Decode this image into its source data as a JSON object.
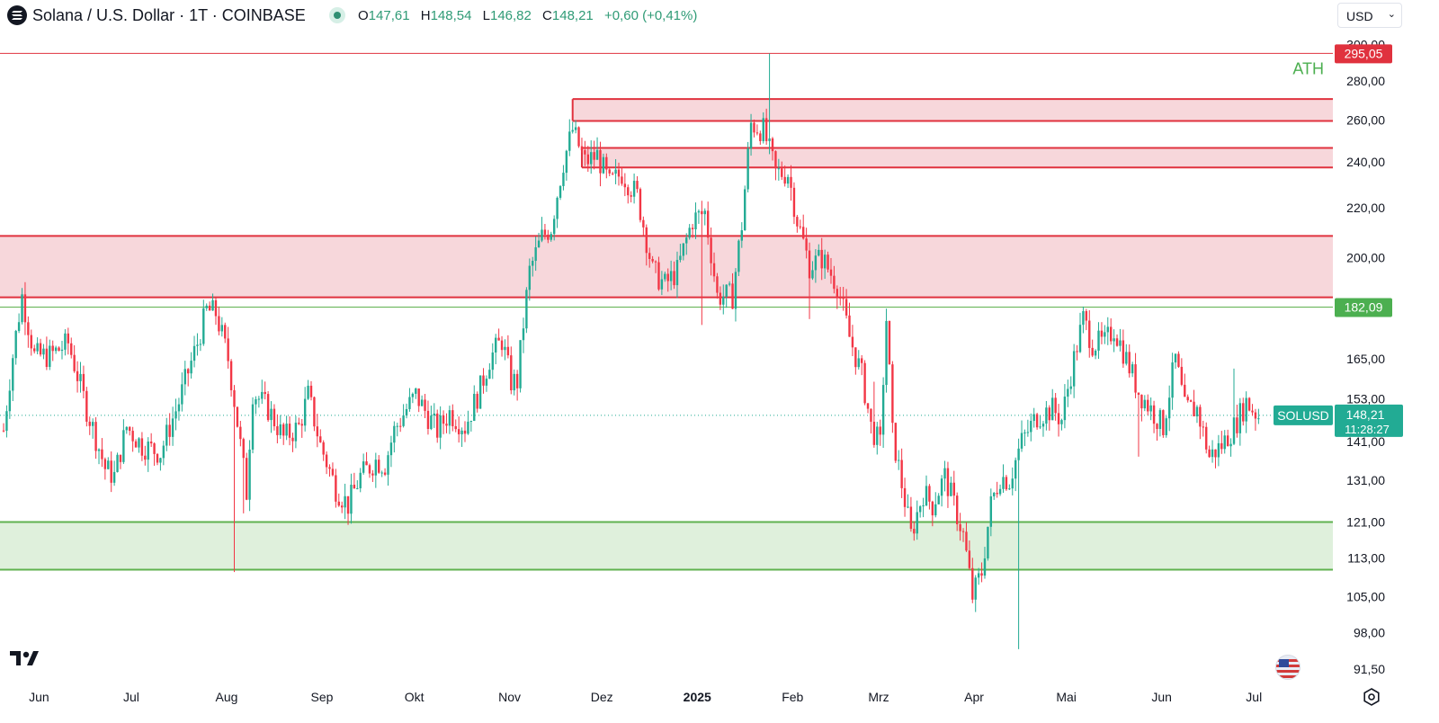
{
  "header": {
    "title": "Solana / U.S. Dollar · 1T · COINBASE",
    "ohlc": {
      "o_label": "O",
      "o": "147,61",
      "h_label": "H",
      "h": "148,54",
      "l_label": "L",
      "l": "146,82",
      "c_label": "C",
      "c": "148,21",
      "change": "+0,60 (+0,41%)"
    },
    "currency": "USD",
    "currency_icon": "chevron-down-icon"
  },
  "colors": {
    "up": "#22ab94",
    "down": "#f23645",
    "resistance_fill": "#f7d7db",
    "resistance_line": "#e0323e",
    "support_fill": "#dff0dc",
    "support_line": "#5fb24f",
    "ath_text": "#4caf50",
    "price_badge": "#22ab94"
  },
  "chart_data": {
    "type": "candlestick",
    "symbol": "SOLUSD",
    "title": "Solana / U.S. Dollar · 1T · COINBASE",
    "y_scale": "log",
    "ylim": [
      89,
      305
    ],
    "y_ticks": [
      {
        "value": 300,
        "label": "300,00"
      },
      {
        "value": 280,
        "label": "280,00"
      },
      {
        "value": 260,
        "label": "260,00"
      },
      {
        "value": 240,
        "label": "240,00"
      },
      {
        "value": 220,
        "label": "220,00"
      },
      {
        "value": 200,
        "label": "200,00"
      },
      {
        "value": 165,
        "label": "165,00"
      },
      {
        "value": 153,
        "label": "153,00"
      },
      {
        "value": 141,
        "label": "141,00"
      },
      {
        "value": 131,
        "label": "131,00"
      },
      {
        "value": 121,
        "label": "121,00"
      },
      {
        "value": 113,
        "label": "113,00"
      },
      {
        "value": 105,
        "label": "105,00"
      },
      {
        "value": 98,
        "label": "98,00"
      },
      {
        "value": 91.5,
        "label": "91,50"
      }
    ],
    "x_ticks": [
      {
        "label": "Jun",
        "day": 8,
        "bold": false
      },
      {
        "label": "Jul",
        "day": 38,
        "bold": false
      },
      {
        "label": "Aug",
        "day": 69,
        "bold": false
      },
      {
        "label": "Sep",
        "day": 100,
        "bold": false
      },
      {
        "label": "Okt",
        "day": 130,
        "bold": false
      },
      {
        "label": "Nov",
        "day": 161,
        "bold": false
      },
      {
        "label": "Dez",
        "day": 191,
        "bold": false
      },
      {
        "label": "2025",
        "day": 222,
        "bold": true
      },
      {
        "label": "Feb",
        "day": 253,
        "bold": false
      },
      {
        "label": "Mrz",
        "day": 281,
        "bold": false
      },
      {
        "label": "Apr",
        "day": 312,
        "bold": false
      },
      {
        "label": "Mai",
        "day": 342,
        "bold": false
      },
      {
        "label": "Jun",
        "day": 373,
        "bold": false
      },
      {
        "label": "Jul",
        "day": 403,
        "bold": false
      }
    ],
    "price_path": [
      [
        0,
        144
      ],
      [
        3,
        166
      ],
      [
        6,
        186
      ],
      [
        10,
        166
      ],
      [
        15,
        166
      ],
      [
        21,
        170
      ],
      [
        27,
        150
      ],
      [
        33,
        134
      ],
      [
        36,
        132
      ],
      [
        40,
        145
      ],
      [
        45,
        140
      ],
      [
        51,
        138
      ],
      [
        57,
        152
      ],
      [
        63,
        170
      ],
      [
        66,
        181
      ],
      [
        69,
        180
      ],
      [
        73,
        165
      ],
      [
        77,
        140
      ],
      [
        79,
        128
      ],
      [
        81,
        155
      ],
      [
        86,
        150
      ],
      [
        91,
        142
      ],
      [
        96,
        145
      ],
      [
        99,
        154
      ],
      [
        103,
        140
      ],
      [
        108,
        129
      ],
      [
        112,
        125
      ],
      [
        116,
        132
      ],
      [
        121,
        136
      ],
      [
        124,
        135
      ],
      [
        127,
        144
      ],
      [
        131,
        150
      ],
      [
        134,
        154
      ],
      [
        138,
        148
      ],
      [
        141,
        144
      ],
      [
        145,
        149
      ],
      [
        150,
        145
      ],
      [
        155,
        156
      ],
      [
        158,
        165
      ],
      [
        162,
        171
      ],
      [
        165,
        158
      ],
      [
        167,
        158
      ],
      [
        171,
        195
      ],
      [
        175,
        208
      ],
      [
        178,
        212
      ],
      [
        182,
        240
      ],
      [
        185,
        255
      ],
      [
        189,
        240
      ],
      [
        193,
        243
      ],
      [
        197,
        230
      ],
      [
        201,
        235
      ],
      [
        206,
        225
      ],
      [
        211,
        195
      ],
      [
        215,
        190
      ],
      [
        219,
        195
      ],
      [
        224,
        215
      ],
      [
        228,
        218
      ],
      [
        232,
        186
      ],
      [
        237,
        186
      ],
      [
        240,
        213
      ],
      [
        243,
        258
      ],
      [
        247,
        255
      ],
      [
        251,
        235
      ],
      [
        255,
        235
      ],
      [
        258,
        215
      ],
      [
        262,
        197
      ],
      [
        266,
        200
      ],
      [
        271,
        190
      ],
      [
        275,
        172
      ],
      [
        279,
        160
      ],
      [
        282,
        145
      ],
      [
        285,
        140
      ],
      [
        287,
        178
      ],
      [
        289,
        143
      ],
      [
        292,
        130
      ],
      [
        295,
        118
      ],
      [
        299,
        128
      ],
      [
        302,
        125
      ],
      [
        306,
        132
      ],
      [
        309,
        125
      ],
      [
        312,
        118
      ],
      [
        315,
        105
      ],
      [
        318,
        110
      ],
      [
        321,
        125
      ],
      [
        324,
        132
      ],
      [
        327,
        131
      ],
      [
        331,
        141
      ],
      [
        336,
        148
      ],
      [
        341,
        150
      ],
      [
        344,
        147
      ],
      [
        348,
        165
      ],
      [
        351,
        178
      ],
      [
        354,
        170
      ],
      [
        358,
        170
      ],
      [
        361,
        175
      ],
      [
        365,
        165
      ],
      [
        369,
        155
      ],
      [
        373,
        150
      ],
      [
        377,
        145
      ],
      [
        381,
        165
      ],
      [
        384,
        150
      ],
      [
        388,
        150
      ],
      [
        392,
        137
      ],
      [
        396,
        140
      ],
      [
        400,
        145
      ],
      [
        404,
        152
      ],
      [
        408,
        148
      ]
    ],
    "candles_count": 409,
    "last_price": {
      "value": 148.21,
      "label": "148,21",
      "countdown": "11:28:27",
      "symbol_tag": "SOLUSD"
    },
    "ath": {
      "value": 295.05,
      "label": "295,05",
      "text": "ATH"
    },
    "support_level": {
      "value": 182.09,
      "label": "182,09"
    },
    "zones": [
      {
        "type": "resistance",
        "low": 185.5,
        "high": 208.5,
        "start_day": 0
      },
      {
        "type": "resistance",
        "low": 259.5,
        "high": 270.5,
        "start_day": 185
      },
      {
        "type": "resistance",
        "low": 237.5,
        "high": 246.5,
        "start_day": 188
      },
      {
        "type": "support",
        "low": 110.5,
        "high": 121.0,
        "start_day": 0
      }
    ]
  }
}
